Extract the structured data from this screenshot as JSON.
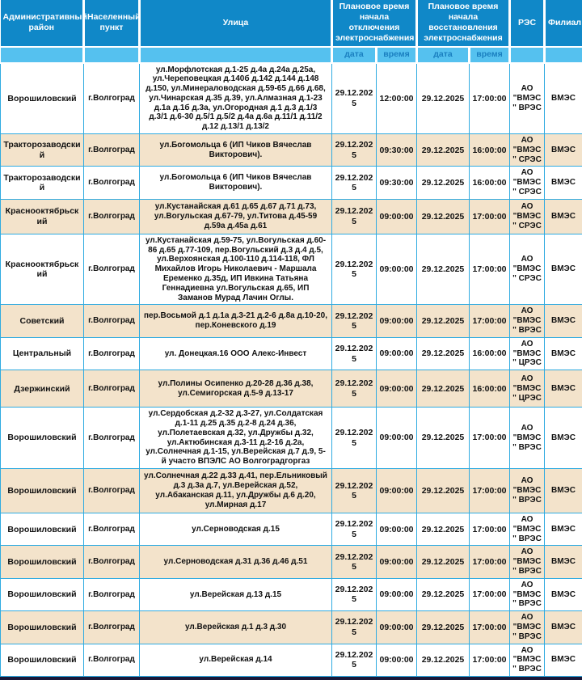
{
  "colors": {
    "header_bg": "#1088c8",
    "header_text": "#ffffff",
    "subheader_bg": "#55c1ef",
    "subheader_text": "#1a7fc0",
    "row_alt_bg": "#f3e3cb",
    "grid_border": "#2fabe1",
    "bottom_bar": "#191839"
  },
  "table": {
    "columns": [
      {
        "id": "district",
        "label": "Административный район"
      },
      {
        "id": "settlement",
        "label": "Населенный пункт"
      },
      {
        "id": "street",
        "label": "Улица"
      },
      {
        "id": "outage",
        "label": "Плановое время начала отключения электроснабжения",
        "sub": [
          "дата",
          "время"
        ]
      },
      {
        "id": "restore",
        "label": "Плановое время начала восстановления электроснабжения",
        "sub": [
          "дата",
          "время"
        ]
      },
      {
        "id": "res",
        "label": "РЭС"
      },
      {
        "id": "branch",
        "label": "Филиал"
      }
    ],
    "rows": [
      {
        "district": "Ворошиловский",
        "settlement": "г.Волгоград",
        "street": "ул.Морфлотская д.1-25 д.4а д.24а д.25а, ул.Череповецкая д.140б д.142 д.144 д.148 д.150, ул.Минераловодская д.59-65 д.66 д.68, ул.Чинарская д.35 д.39, ул.Алмазная д.1-23 д.1а д.1б д.3а, ул.Огородная д.1 д.3 д.1/3 д.3/1 д.6-30 д.5/1 д.5/2 д.4а д.6а д.11/1 д.11/2 д.12 д.13/1 д.13/2",
        "outage_date": "29.12.2025",
        "outage_time": "12:00:00",
        "restore_date": "29.12.2025",
        "restore_time": "17:00:00",
        "res": "АО \"ВМЭС\" ВРЭС",
        "branch": "ВМЭС",
        "shaded": false
      },
      {
        "district": "Тракторозаводский",
        "settlement": "г.Волгоград",
        "street": "ул.Богомольца 6 (ИП Чиков Вячеслав Викторович).",
        "outage_date": "29.12.2025",
        "outage_time": "09:30:00",
        "restore_date": "29.12.2025",
        "restore_time": "16:00:00",
        "res": "АО \"ВМЭС\" СРЭС",
        "branch": "ВМЭС",
        "shaded": true
      },
      {
        "district": "Тракторозаводский",
        "settlement": "г.Волгоград",
        "street": "ул.Богомольца 6 (ИП Чиков Вячеслав Викторович).",
        "outage_date": "29.12.2025",
        "outage_time": "09:30:00",
        "restore_date": "29.12.2025",
        "restore_time": "16:00:00",
        "res": "АО \"ВМЭС\" СРЭС",
        "branch": "ВМЭС",
        "shaded": false
      },
      {
        "district": "Краснооктябрьский",
        "settlement": "г.Волгоград",
        "street": "ул.Кустанайская д.61 д.65 д.67 д.71 д.73, ул.Вогульская д.67-79, ул.Титова д.45-59 д.59а д.45а д.61",
        "outage_date": "29.12.2025",
        "outage_time": "09:00:00",
        "restore_date": "29.12.2025",
        "restore_time": "17:00:00",
        "res": "АО \"ВМЭС\" СРЭС",
        "branch": "ВМЭС",
        "shaded": true
      },
      {
        "district": "Краснооктябрьский",
        "settlement": "г.Волгоград",
        "street": "ул.Кустанайская д.59-75, ул.Вогульская д.60-86 д.65 д.77-109, пер.Вогульский д.3 д.4 д.5, ул.Верхоянская д.100-110 д.114-118, ФЛ Михайлов Игорь Николаевич - Маршала Еременко д.35д, ИП Ивкина Татьяна Геннадиевна ул.Вогульская д.65, ИП Заманов Мурад Лачин Оглы.",
        "outage_date": "29.12.2025",
        "outage_time": "09:00:00",
        "restore_date": "29.12.2025",
        "restore_time": "17:00:00",
        "res": "АО \"ВМЭС\" СРЭС",
        "branch": "ВМЭС",
        "shaded": false
      },
      {
        "district": "Советский",
        "settlement": "г.Волгоград",
        "street": "пер.Восьмой д.1 д.1а д.3-21 д.2-6 д.8а д.10-20, пер.Коневского д.19",
        "outage_date": "29.12.2025",
        "outage_time": "09:00:00",
        "restore_date": "29.12.2025",
        "restore_time": "17:00:00",
        "res": "АО \"ВМЭС\" ВРЭС",
        "branch": "ВМЭС",
        "shaded": true
      },
      {
        "district": "Центральный",
        "settlement": "г.Волгоград",
        "street": "ул. Донецкая.16 ООО Алекс-Инвест",
        "outage_date": "29.12.2025",
        "outage_time": "09:00:00",
        "restore_date": "29.12.2025",
        "restore_time": "16:00:00",
        "res": "АО \"ВМЭС\" ЦРЭС",
        "branch": "ВМЭС",
        "shaded": false
      },
      {
        "district": "Дзержинский",
        "settlement": "г.Волгоград",
        "street": "ул.Полины Осипенко д.20-28 д.36 д.38, ул.Семигорская д.5-9 д.13-17",
        "outage_date": "29.12.2025",
        "outage_time": "09:00:00",
        "restore_date": "29.12.2025",
        "restore_time": "16:00:00",
        "res": "АО \"ВМЭС\" ЦРЭС",
        "branch": "ВМЭС",
        "shaded": true
      },
      {
        "district": "Ворошиловский",
        "settlement": "г.Волгоград",
        "street": "ул.Сердобская д.2-32 д.3-27, ул.Солдатская д.1-11 д.25 д.35 д.2-8 д.24 д.36, ул.Полетаевская д.32, ул.Дружбы д.32, ул.Актюбинская д.3-11 д.2-16 д.2а, ул.Солнечная д.1-15, ул.Верейская д.7 д.9, 5-й участо ВПЭЛС АО Волгоградгоргаз",
        "outage_date": "29.12.2025",
        "outage_time": "09:00:00",
        "restore_date": "29.12.2025",
        "restore_time": "17:00:00",
        "res": "АО \"ВМЭС\" ВРЭС",
        "branch": "ВМЭС",
        "shaded": false
      },
      {
        "district": "Ворошиловский",
        "settlement": "г.Волгоград",
        "street": "ул.Солнечная д.22 д.33 д.41, пер.Ельниковый д.3 д.3а д.7, ул.Верейская д.52, ул.Абаканская д.11, ул.Дружбы д.6 д.20, ул.Мирная д.17",
        "outage_date": "29.12.2025",
        "outage_time": "09:00:00",
        "restore_date": "29.12.2025",
        "restore_time": "17:00:00",
        "res": "АО \"ВМЭС\" ВРЭС",
        "branch": "ВМЭС",
        "shaded": true
      },
      {
        "district": "Ворошиловский",
        "settlement": "г.Волгоград",
        "street": "ул.Серноводская д.15",
        "outage_date": "29.12.2025",
        "outage_time": "09:00:00",
        "restore_date": "29.12.2025",
        "restore_time": "17:00:00",
        "res": "АО \"ВМЭС\" ВРЭС",
        "branch": "ВМЭС",
        "shaded": false
      },
      {
        "district": "Ворошиловский",
        "settlement": "г.Волгоград",
        "street": "ул.Серноводская д.31 д.36 д.46 д.51",
        "outage_date": "29.12.2025",
        "outage_time": "09:00:00",
        "restore_date": "29.12.2025",
        "restore_time": "17:00:00",
        "res": "АО \"ВМЭС\" ВРЭС",
        "branch": "ВМЭС",
        "shaded": true
      },
      {
        "district": "Ворошиловский",
        "settlement": "г.Волгоград",
        "street": "ул.Верейская д.13 д.15",
        "outage_date": "29.12.2025",
        "outage_time": "09:00:00",
        "restore_date": "29.12.2025",
        "restore_time": "17:00:00",
        "res": "АО \"ВМЭС\" ВРЭС",
        "branch": "ВМЭС",
        "shaded": false
      },
      {
        "district": "Ворошиловский",
        "settlement": "г.Волгоград",
        "street": "ул.Верейская д.1 д.3 д.30",
        "outage_date": "29.12.2025",
        "outage_time": "09:00:00",
        "restore_date": "29.12.2025",
        "restore_time": "17:00:00",
        "res": "АО \"ВМЭС\" ВРЭС",
        "branch": "ВМЭС",
        "shaded": true
      },
      {
        "district": "Ворошиловский",
        "settlement": "г.Волгоград",
        "street": "ул.Верейская д.14",
        "outage_date": "29.12.2025",
        "outage_time": "09:00:00",
        "restore_date": "29.12.2025",
        "restore_time": "17:00:00",
        "res": "АО \"ВМЭС\" ВРЭС",
        "branch": "ВМЭС",
        "shaded": false
      }
    ]
  }
}
